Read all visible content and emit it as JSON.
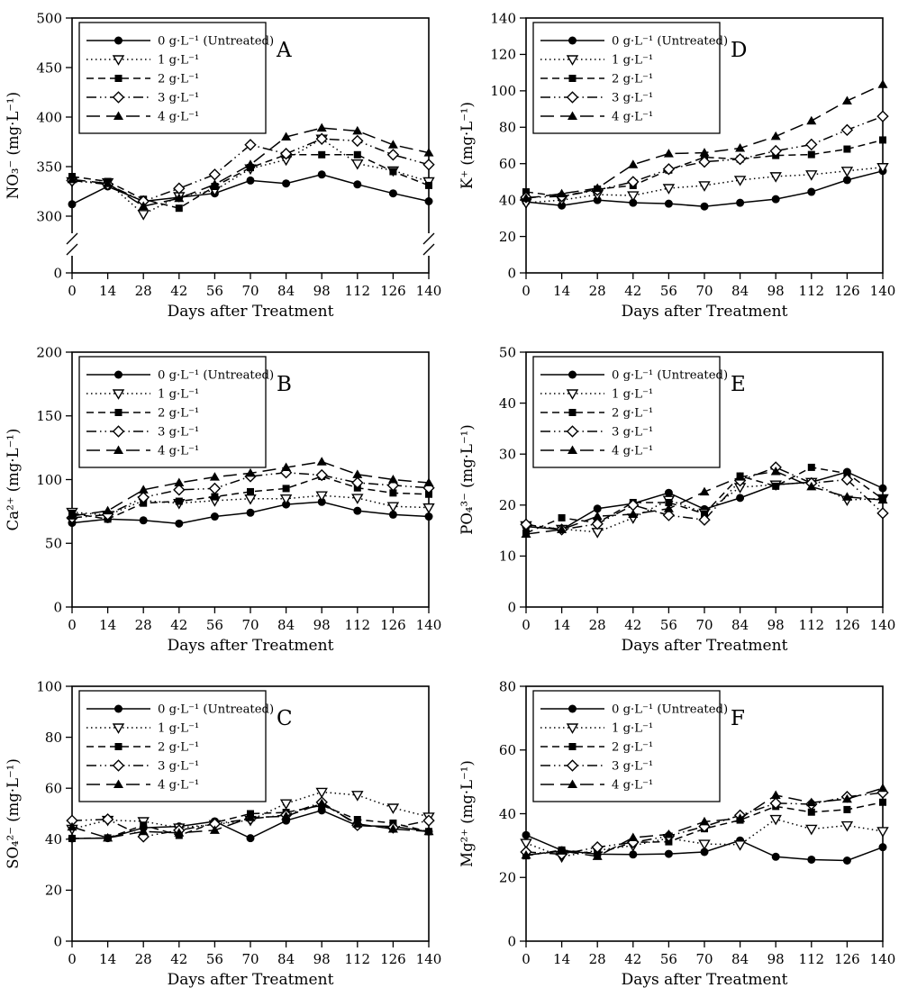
{
  "figure": {
    "xlabel": "Days after Treatment",
    "colors": {
      "line": "#000000",
      "background": "#ffffff",
      "text": "#000000"
    },
    "legend": {
      "position": "upper-left",
      "entries": [
        {
          "label": "0 g·L⁻¹ (Untreated)",
          "marker": "filled-circle",
          "line": "solid"
        },
        {
          "label": "1 g·L⁻¹",
          "marker": "open-triangle-down",
          "line": "dotted"
        },
        {
          "label": "2 g·L⁻¹",
          "marker": "filled-square",
          "line": "dashed"
        },
        {
          "label": "3 g·L⁻¹",
          "marker": "open-diamond",
          "line": "dash-dot-dot"
        },
        {
          "label": "4 g·L⁻¹",
          "marker": "filled-triangle-up",
          "line": "long-dash"
        }
      ]
    }
  },
  "chart_data": [
    {
      "type": "line",
      "panel": "A",
      "ylabel": "NO₃⁻ (mg·L⁻¹)",
      "xlabel": "Days after Treatment",
      "x": [
        0,
        14,
        28,
        42,
        56,
        70,
        84,
        98,
        112,
        126,
        140
      ],
      "ylim": [
        0,
        500
      ],
      "yticks": [
        0,
        300,
        350,
        400,
        450,
        500
      ],
      "axis_break": true,
      "grid": false,
      "legend_position": "upper-left",
      "series": [
        {
          "name": "0 g·L⁻¹ (Untreated)",
          "marker": "filled-circle",
          "line": "solid",
          "values": [
            312,
            330,
            315,
            319,
            323,
            336,
            333,
            342,
            332,
            323,
            315
          ]
        },
        {
          "name": "1 g·L⁻¹",
          "marker": "open-triangle-down",
          "line": "dotted",
          "values": [
            335,
            334,
            302,
            320,
            326,
            348,
            357,
            378,
            353,
            346,
            335
          ]
        },
        {
          "name": "2 g·L⁻¹",
          "marker": "filled-square",
          "line": "dashed",
          "values": [
            340,
            335,
            317,
            308,
            330,
            349,
            362,
            362,
            362,
            345,
            331
          ]
        },
        {
          "name": "3 g·L⁻¹",
          "marker": "open-diamond",
          "line": "dash-dot-dot",
          "values": [
            336,
            332,
            315,
            328,
            342,
            372,
            363,
            378,
            376,
            362,
            352
          ]
        },
        {
          "name": "4 g·L⁻¹",
          "marker": "filled-triangle-up",
          "line": "long-dash",
          "values": [
            337,
            333,
            310,
            318,
            332,
            352,
            380,
            389,
            386,
            372,
            364
          ]
        }
      ]
    },
    {
      "type": "line",
      "panel": "D",
      "ylabel": "K⁺ (mg·L⁻¹)",
      "xlabel": "Days after Treatment",
      "x": [
        0,
        14,
        28,
        42,
        56,
        70,
        84,
        98,
        112,
        126,
        140
      ],
      "ylim": [
        0,
        140
      ],
      "yticks": [
        0,
        20,
        40,
        60,
        80,
        100,
        120,
        140
      ],
      "axis_break": false,
      "grid": false,
      "legend_position": "upper-left",
      "series": [
        {
          "name": "0 g·L⁻¹ (Untreated)",
          "marker": "filled-circle",
          "line": "solid",
          "values": [
            39,
            37,
            40,
            38.5,
            38,
            36.5,
            38.5,
            40.5,
            44.5,
            51,
            56
          ]
        },
        {
          "name": "1 g·L⁻¹",
          "marker": "open-triangle-down",
          "line": "dotted",
          "values": [
            38.5,
            40,
            43,
            42.5,
            46.5,
            48,
            51,
            53,
            54,
            56,
            58
          ]
        },
        {
          "name": "2 g·L⁻¹",
          "marker": "filled-square",
          "line": "dashed",
          "values": [
            44.5,
            42,
            46,
            48,
            56.5,
            63.5,
            62.5,
            64.5,
            65,
            68,
            73
          ]
        },
        {
          "name": "3 g·L⁻¹",
          "marker": "open-diamond",
          "line": "dash-dot-dot",
          "values": [
            41.5,
            42,
            45.5,
            50,
            57,
            61,
            62.5,
            67,
            70.5,
            78.5,
            86
          ]
        },
        {
          "name": "4 g·L⁻¹",
          "marker": "filled-triangle-up",
          "line": "long-dash",
          "values": [
            41,
            43.5,
            46.5,
            59.5,
            65.5,
            66,
            68.5,
            75,
            83.5,
            94.5,
            103.5
          ]
        }
      ]
    },
    {
      "type": "line",
      "panel": "B",
      "ylabel": "Ca²⁺ (mg·L⁻¹)",
      "xlabel": "Days after Treatment",
      "x": [
        0,
        14,
        28,
        42,
        56,
        70,
        84,
        98,
        112,
        126,
        140
      ],
      "ylim": [
        0,
        200
      ],
      "yticks": [
        0,
        50,
        100,
        150,
        200
      ],
      "axis_break": false,
      "grid": false,
      "legend_position": "upper-left",
      "series": [
        {
          "name": "0 g·L⁻¹ (Untreated)",
          "marker": "filled-circle",
          "line": "solid",
          "values": [
            66,
            69,
            68,
            65.5,
            71,
            74,
            80.5,
            82.5,
            75.5,
            72.5,
            71
          ]
        },
        {
          "name": "1 g·L⁻¹",
          "marker": "open-triangle-down",
          "line": "dotted",
          "values": [
            74.5,
            72,
            83.5,
            81.5,
            83.5,
            85,
            85,
            87.5,
            85.5,
            79,
            78
          ]
        },
        {
          "name": "2 g·L⁻¹",
          "marker": "filled-square",
          "line": "dashed",
          "values": [
            73.5,
            69,
            81.5,
            83,
            86.5,
            90.5,
            93,
            102.5,
            93.5,
            89.5,
            88.5
          ]
        },
        {
          "name": "3 g·L⁻¹",
          "marker": "open-diamond",
          "line": "dash-dot-dot",
          "values": [
            70,
            72.5,
            86,
            92,
            93,
            102.5,
            105.5,
            103.5,
            97.5,
            95.5,
            93.5
          ]
        },
        {
          "name": "4 g·L⁻¹",
          "marker": "filled-triangle-up",
          "line": "long-dash",
          "values": [
            71.5,
            75.5,
            92,
            97.5,
            102,
            105,
            109.5,
            114,
            104,
            100,
            97.5
          ]
        }
      ]
    },
    {
      "type": "line",
      "panel": "E",
      "ylabel": "PO₄³⁻ (mg·L⁻¹)",
      "xlabel": "Days after Treatment",
      "x": [
        0,
        14,
        28,
        42,
        56,
        70,
        84,
        98,
        112,
        126,
        140
      ],
      "ylim": [
        0,
        50
      ],
      "yticks": [
        0,
        10,
        20,
        30,
        40,
        50
      ],
      "axis_break": false,
      "grid": false,
      "legend_position": "upper-left",
      "series": [
        {
          "name": "0 g·L⁻¹ (Untreated)",
          "marker": "filled-circle",
          "line": "solid",
          "values": [
            15.8,
            15.2,
            19.3,
            20.3,
            22.4,
            19.2,
            21.4,
            24,
            24.5,
            26.5,
            23.3
          ]
        },
        {
          "name": "1 g·L⁻¹",
          "marker": "open-triangle-down",
          "line": "dotted",
          "values": [
            16,
            15.3,
            14.7,
            17.5,
            21,
            18.5,
            23.5,
            24,
            24.5,
            21,
            21.3
          ]
        },
        {
          "name": "2 g·L⁻¹",
          "marker": "filled-square",
          "line": "dashed",
          "values": [
            14.5,
            17.5,
            16.5,
            20.5,
            20.5,
            18.3,
            25.7,
            23.7,
            27.4,
            26.2,
            21.2
          ]
        },
        {
          "name": "3 g·L⁻¹",
          "marker": "open-diamond",
          "line": "dash-dot-dot",
          "values": [
            16.2,
            15.2,
            16.3,
            20,
            18,
            17.1,
            24.8,
            27.4,
            24.3,
            25,
            18.4
          ]
        },
        {
          "name": "4 g·L⁻¹",
          "marker": "filled-triangle-up",
          "line": "long-dash",
          "values": [
            14.3,
            15.2,
            17.8,
            18.2,
            19.3,
            22.6,
            25.5,
            26.6,
            23.6,
            21.6,
            21
          ]
        }
      ]
    },
    {
      "type": "line",
      "panel": "C",
      "ylabel": "SO₄²⁻ (mg·L⁻¹)",
      "xlabel": "Days after Treatment",
      "x": [
        0,
        14,
        28,
        42,
        56,
        70,
        84,
        98,
        112,
        126,
        140
      ],
      "ylim": [
        0,
        100
      ],
      "yticks": [
        0,
        20,
        40,
        60,
        80,
        100
      ],
      "axis_break": false,
      "grid": false,
      "legend_position": "upper-left",
      "series": [
        {
          "name": "0 g·L⁻¹ (Untreated)",
          "marker": "filled-circle",
          "line": "solid",
          "values": [
            40.3,
            40.4,
            44.5,
            45,
            47,
            40.4,
            47.3,
            51.3,
            45.3,
            45,
            43
          ]
        },
        {
          "name": "1 g·L⁻¹",
          "marker": "open-triangle-down",
          "line": "dotted",
          "values": [
            44,
            47.5,
            47,
            44.5,
            45.8,
            47.5,
            54,
            58.5,
            57.3,
            52.3,
            48.8
          ]
        },
        {
          "name": "2 g·L⁻¹",
          "marker": "filled-square",
          "line": "dashed",
          "values": [
            40.3,
            40.5,
            45.5,
            41.5,
            46.5,
            50,
            50.5,
            53.3,
            47.7,
            46.3,
            43
          ]
        },
        {
          "name": "3 g·L⁻¹",
          "marker": "open-diamond",
          "line": "dash-dot-dot",
          "values": [
            47.3,
            47.8,
            41,
            43.5,
            46,
            48,
            49.5,
            54.5,
            45.5,
            44.5,
            47.3
          ]
        },
        {
          "name": "4 g·L⁻¹",
          "marker": "filled-triangle-up",
          "line": "long-dash",
          "values": [
            44.8,
            40.5,
            43,
            42.5,
            43.5,
            48.5,
            49,
            54,
            46,
            44,
            43
          ]
        }
      ]
    },
    {
      "type": "line",
      "panel": "F",
      "ylabel": "Mg²⁺ (mg·L⁻¹)",
      "xlabel": "Days after Treatment",
      "x": [
        0,
        14,
        28,
        42,
        56,
        70,
        84,
        98,
        112,
        126,
        140
      ],
      "ylim": [
        0,
        80
      ],
      "yticks": [
        0,
        20,
        40,
        60,
        80
      ],
      "axis_break": false,
      "grid": false,
      "legend_position": "upper-left",
      "series": [
        {
          "name": "0 g·L⁻¹ (Untreated)",
          "marker": "filled-circle",
          "line": "solid",
          "values": [
            33.3,
            28.5,
            27.3,
            27.2,
            27.4,
            28,
            31.6,
            26.5,
            25.6,
            25.3,
            29.5
          ]
        },
        {
          "name": "1 g·L⁻¹",
          "marker": "open-triangle-down",
          "line": "dotted",
          "values": [
            30.8,
            26.5,
            28.5,
            30,
            32.3,
            30.5,
            30.3,
            38.3,
            35.2,
            36.3,
            34.5
          ]
        },
        {
          "name": "2 g·L⁻¹",
          "marker": "filled-square",
          "line": "dashed",
          "values": [
            26.8,
            28.6,
            27.5,
            31,
            31.2,
            35.3,
            38,
            42.3,
            40.5,
            41.3,
            43.6
          ]
        },
        {
          "name": "3 g·L⁻¹",
          "marker": "open-diamond",
          "line": "dash-dot-dot",
          "values": [
            28,
            27.3,
            29.5,
            31,
            33,
            36,
            39.5,
            43.3,
            43,
            45.3,
            46.6
          ]
        },
        {
          "name": "4 g·L⁻¹",
          "marker": "filled-triangle-up",
          "line": "long-dash",
          "values": [
            27,
            28.3,
            26.6,
            32.5,
            33.5,
            37.5,
            38.5,
            45.8,
            43.5,
            44.6,
            48
          ]
        }
      ]
    }
  ]
}
